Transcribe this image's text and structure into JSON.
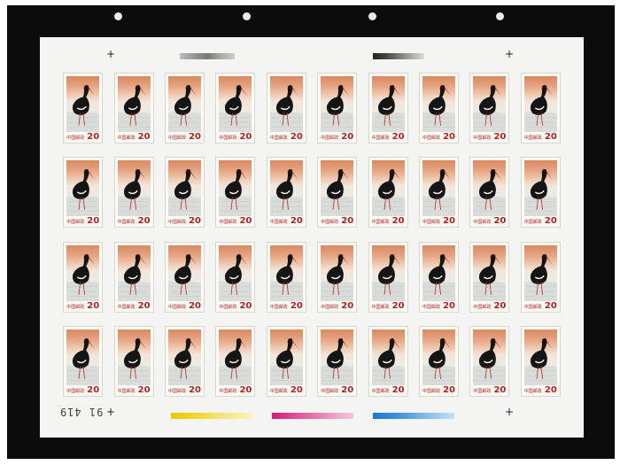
{
  "sheet": {
    "rows": 4,
    "columns": 10,
    "stamp": {
      "country": "中国邮政",
      "value": "20",
      "subject": "black-stork"
    },
    "plate_number": "91 419",
    "colors": {
      "binder": "#0c0c0c",
      "paper": "#f4f4f2",
      "stamp_sky_top": "#d88a62",
      "stamp_water": "#e2e4e0",
      "bird": "#151515",
      "beak": "#b3322a",
      "value_red": "#b02020"
    },
    "color_bars": [
      "yellow-bar",
      "magenta-bar",
      "cyan-bar"
    ]
  }
}
